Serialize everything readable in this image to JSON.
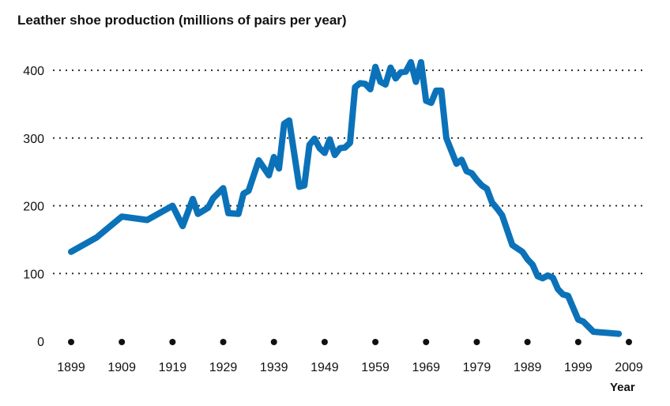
{
  "chart_data": {
    "type": "line",
    "title": "Leather shoe production (millions of pairs per year)",
    "xlabel": "Year",
    "ylabel": "",
    "xlim": [
      1899,
      2009
    ],
    "ylim": [
      0,
      400
    ],
    "x_ticks": [
      "1899",
      "1909",
      "1919",
      "1929",
      "1939",
      "1949",
      "1959",
      "1969",
      "1979",
      "1989",
      "1999",
      "2009"
    ],
    "y_ticks": [
      "0",
      "100",
      "200",
      "300",
      "400"
    ],
    "grid": "horizontal dotted",
    "line_color": "#0b72b9",
    "series": [
      {
        "x": [
          1899,
          1904,
          1909,
          1914,
          1919,
          1921,
          1923,
          1924,
          1926,
          1927,
          1929,
          1930,
          1932,
          1933,
          1934,
          1936,
          1938,
          1939,
          1940,
          1941,
          1942,
          1944,
          1945,
          1946,
          1947,
          1948,
          1949,
          1950,
          1951,
          1952,
          1953,
          1954,
          1955,
          1956,
          1957,
          1958,
          1959,
          1960,
          1961,
          1962,
          1963,
          1964,
          1965,
          1966,
          1967,
          1968,
          1969,
          1970,
          1971,
          1972,
          1973,
          1975,
          1976,
          1977,
          1978,
          1979,
          1980,
          1981,
          1982,
          1983,
          1984,
          1986,
          1988,
          1989,
          1990,
          1991,
          1992,
          1993,
          1994,
          1995,
          1996,
          1997,
          1999,
          2000,
          2002,
          2007
        ],
        "y": [
          132,
          153,
          184,
          179,
          200,
          170,
          210,
          188,
          197,
          211,
          226,
          189,
          188,
          218,
          222,
          267,
          245,
          272,
          255,
          321,
          326,
          228,
          230,
          290,
          299,
          285,
          278,
          298,
          275,
          285,
          286,
          293,
          375,
          381,
          380,
          372,
          405,
          383,
          379,
          404,
          388,
          397,
          398,
          412,
          383,
          412,
          355,
          352,
          370,
          370,
          300,
          262,
          268,
          251,
          248,
          238,
          230,
          225,
          205,
          196,
          186,
          142,
          132,
          121,
          113,
          96,
          93,
          97,
          94,
          77,
          69,
          67,
          32,
          29,
          14,
          11
        ]
      }
    ]
  }
}
